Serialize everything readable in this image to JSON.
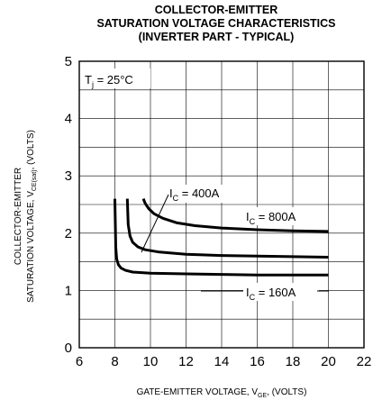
{
  "chart_data": {
    "type": "line",
    "title": [
      "COLLECTOR-EMITTER",
      "SATURATION VOLTAGE CHARACTERISTICS",
      "(INVERTER PART - TYPICAL)"
    ],
    "xlabel": {
      "main": "GATE-EMITTER VOLTAGE, V",
      "sub": "GE",
      "suffix": ", (VOLTS)"
    },
    "ylabel": {
      "line1": "COLLECTOR-EMITTER",
      "line2_main": "SATURATION VOLTAGE, V",
      "line2_sub": "CE(sat)",
      "line2_suffix": ", (VOLTS)"
    },
    "xlim": [
      6,
      22
    ],
    "ylim": [
      0,
      5
    ],
    "xticks": [
      "6",
      "8",
      "10",
      "12",
      "14",
      "16",
      "18",
      "20",
      "22"
    ],
    "yticks": [
      "0",
      "1",
      "2",
      "3",
      "4",
      "5"
    ],
    "grid": true,
    "annotation_condition": {
      "main": "T",
      "sub": "j",
      "rest": " = 25°C"
    },
    "series": [
      {
        "name": {
          "main": "I",
          "sub": "C",
          "rest": " = 160A"
        },
        "x": [
          8.0,
          8.05,
          8.1,
          8.2,
          8.35,
          8.6,
          9.0,
          10,
          12,
          14,
          16,
          18,
          20
        ],
        "y": [
          2.6,
          1.75,
          1.55,
          1.45,
          1.39,
          1.35,
          1.32,
          1.3,
          1.29,
          1.28,
          1.27,
          1.27,
          1.27
        ]
      },
      {
        "name": {
          "main": "I",
          "sub": "C",
          "rest": " = 400A"
        },
        "x": [
          8.7,
          8.75,
          8.85,
          9.0,
          9.3,
          9.7,
          10.5,
          12,
          14,
          16,
          18,
          20
        ],
        "y": [
          2.6,
          2.15,
          1.95,
          1.84,
          1.76,
          1.71,
          1.67,
          1.63,
          1.61,
          1.6,
          1.59,
          1.58
        ]
      },
      {
        "name": {
          "main": "I",
          "sub": "C",
          "rest": " = 800A"
        },
        "x": [
          9.6,
          9.7,
          9.9,
          10.2,
          10.7,
          11.5,
          12.5,
          14,
          16,
          18,
          20
        ],
        "y": [
          2.6,
          2.52,
          2.43,
          2.34,
          2.26,
          2.18,
          2.13,
          2.09,
          2.06,
          2.04,
          2.03
        ]
      }
    ]
  }
}
